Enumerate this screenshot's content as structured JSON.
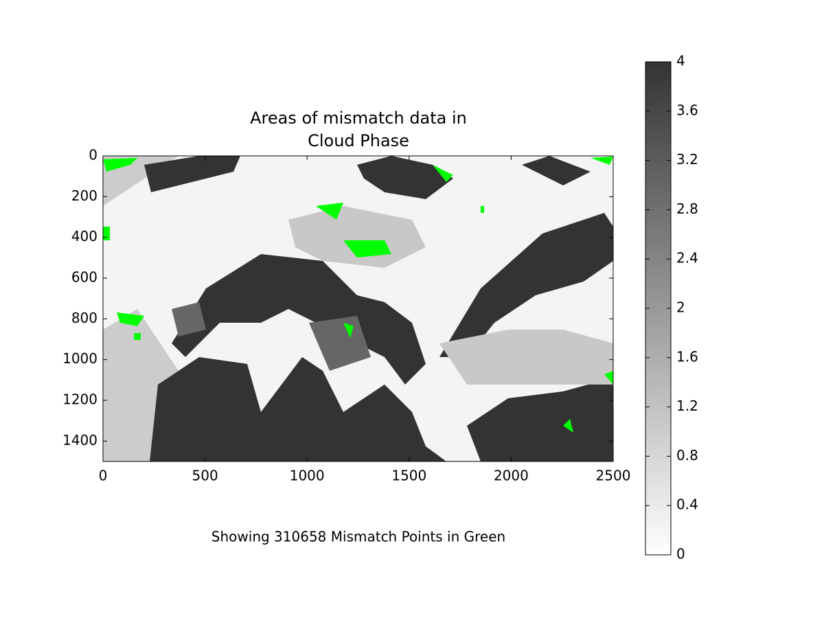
{
  "chart_data": {
    "type": "image",
    "title": [
      "Areas of mismatch data in",
      "Cloud Phase"
    ],
    "xlabel": "Showing 310658 Mismatch Points in Green",
    "xlim": [
      0,
      2500
    ],
    "xticks": [
      0,
      500,
      1000,
      1500,
      2000,
      2500
    ],
    "ylim": [
      1500,
      0
    ],
    "yticks": [
      0,
      200,
      400,
      600,
      800,
      1000,
      1200,
      1400
    ],
    "colormap": [
      "#ffffff",
      "#333333"
    ],
    "mismatch_color": "#00ff00",
    "colorbar": {
      "lim": [
        0,
        4
      ],
      "ticks": [
        0,
        0.4,
        0.8,
        1.2,
        1.6,
        2,
        2.4,
        2.8,
        3.2,
        3.6,
        4
      ]
    }
  }
}
